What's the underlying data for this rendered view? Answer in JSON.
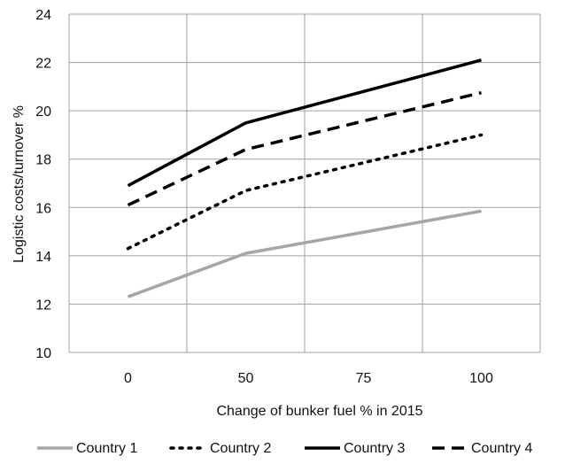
{
  "chart_data": {
    "type": "line",
    "x": [
      0,
      50,
      100
    ],
    "x_ticks": [
      "0",
      "50",
      "75",
      "100"
    ],
    "xlabel": "Change of bunker fuel % in 2015",
    "ylabel": "Logistic costs/turnover %",
    "ylim": [
      10,
      24
    ],
    "y_ticks": [
      "10",
      "12",
      "14",
      "16",
      "18",
      "20",
      "22",
      "24"
    ],
    "grid": true,
    "legend_position": "bottom",
    "series": [
      {
        "name": "Country 1",
        "values": [
          12.3,
          14.1,
          15.85
        ],
        "color": "#a6a6a6",
        "style": "solid"
      },
      {
        "name": "Country 2",
        "values": [
          14.3,
          16.7,
          19.0
        ],
        "color": "#000000",
        "style": "dotted"
      },
      {
        "name": "Country 3",
        "values": [
          16.9,
          19.5,
          22.1
        ],
        "color": "#000000",
        "style": "solid"
      },
      {
        "name": "Country 4",
        "values": [
          16.1,
          18.4,
          20.75
        ],
        "color": "#000000",
        "style": "dashed"
      }
    ]
  }
}
